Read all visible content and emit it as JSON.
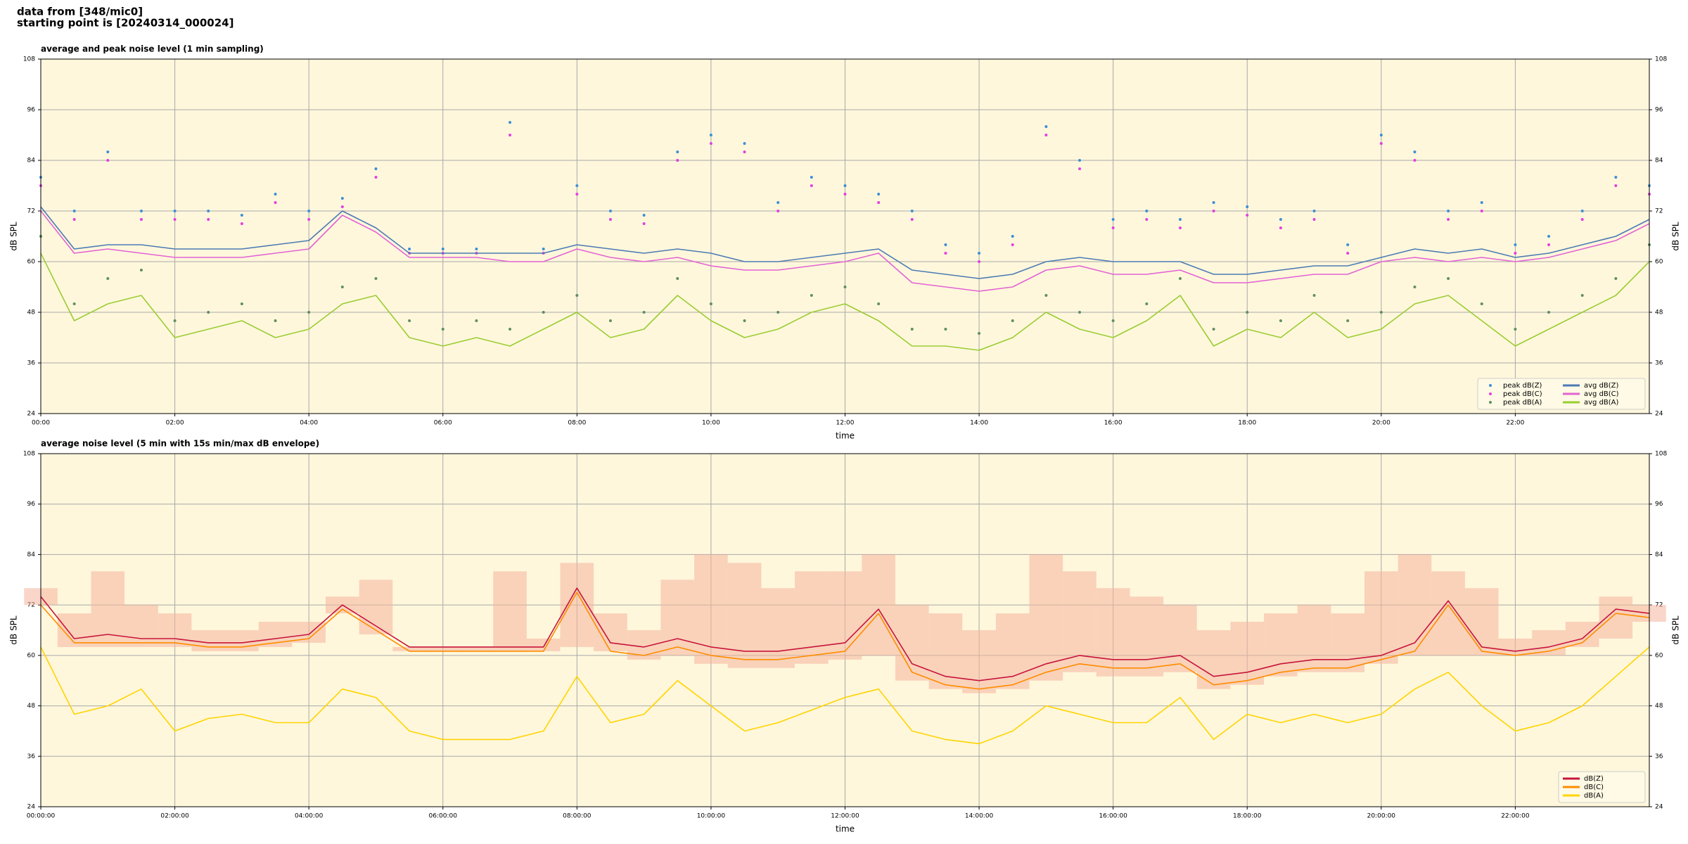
{
  "header": [
    "data from [348/mic0]",
    "starting point is [20240314_000024]"
  ],
  "chart_data": [
    {
      "type": "line",
      "title": "average and peak noise level (1 min sampling)",
      "x_label": "time",
      "y_label": "dB SPL",
      "xlim": [
        0,
        24
      ],
      "ylim": [
        24,
        108
      ],
      "xticks": [
        {
          "value": 0,
          "label": "00:00"
        },
        {
          "value": 2,
          "label": "02:00"
        },
        {
          "value": 4,
          "label": "04:00"
        },
        {
          "value": 6,
          "label": "06:00"
        },
        {
          "value": 8,
          "label": "08:00"
        },
        {
          "value": 10,
          "label": "10:00"
        },
        {
          "value": 12,
          "label": "12:00"
        },
        {
          "value": 14,
          "label": "14:00"
        },
        {
          "value": 16,
          "label": "16:00"
        },
        {
          "value": 18,
          "label": "18:00"
        },
        {
          "value": 20,
          "label": "20:00"
        },
        {
          "value": 22,
          "label": "22:00"
        }
      ],
      "yticks": [
        24,
        36,
        48,
        60,
        72,
        84,
        96,
        108
      ],
      "grid": true,
      "legend": "lower right",
      "legend_columns": 2,
      "x": [
        0,
        0.5,
        1,
        1.5,
        2,
        2.5,
        3,
        3.5,
        4,
        4.5,
        5,
        5.5,
        6,
        6.5,
        7,
        7.5,
        8,
        8.5,
        9,
        9.5,
        10,
        10.5,
        11,
        11.5,
        12,
        12.5,
        13,
        13.5,
        14,
        14.5,
        15,
        15.5,
        16,
        16.5,
        17,
        17.5,
        18,
        18.5,
        19,
        19.5,
        20,
        20.5,
        21,
        21.5,
        22,
        22.5,
        23,
        23.5,
        24
      ],
      "series": [
        {
          "name": "peak dB(Z)",
          "style": "points",
          "color": "#3d8fd6",
          "values": [
            80,
            72,
            86,
            72,
            72,
            72,
            71,
            76,
            72,
            75,
            82,
            63,
            63,
            63,
            93,
            63,
            78,
            72,
            71,
            86,
            90,
            88,
            74,
            80,
            78,
            76,
            72,
            64,
            62,
            66,
            92,
            84,
            70,
            72,
            70,
            74,
            73,
            70,
            72,
            64,
            90,
            86,
            72,
            74,
            64,
            66,
            72,
            80,
            78
          ]
        },
        {
          "name": "peak dB(C)",
          "style": "points",
          "color": "#e33fe0",
          "values": [
            78,
            70,
            84,
            70,
            70,
            70,
            69,
            74,
            70,
            73,
            80,
            62,
            62,
            62,
            90,
            62,
            76,
            70,
            69,
            84,
            88,
            86,
            72,
            78,
            76,
            74,
            70,
            62,
            60,
            64,
            90,
            82,
            68,
            70,
            68,
            72,
            71,
            68,
            70,
            62,
            88,
            84,
            70,
            72,
            62,
            64,
            70,
            78,
            76
          ]
        },
        {
          "name": "peak dB(A)",
          "style": "points",
          "color": "#5f8f62",
          "values": [
            66,
            50,
            56,
            58,
            46,
            48,
            50,
            46,
            48,
            54,
            56,
            46,
            44,
            46,
            44,
            48,
            52,
            46,
            48,
            56,
            50,
            46,
            48,
            52,
            54,
            50,
            44,
            44,
            43,
            46,
            52,
            48,
            46,
            50,
            56,
            44,
            48,
            46,
            52,
            46,
            48,
            54,
            56,
            50,
            44,
            48,
            52,
            56,
            64
          ]
        },
        {
          "name": "avg dB(Z)",
          "style": "line",
          "color": "#4c7bb4",
          "values": [
            73,
            63,
            64,
            64,
            63,
            63,
            63,
            64,
            65,
            72,
            68,
            62,
            62,
            62,
            62,
            62,
            64,
            63,
            62,
            63,
            62,
            60,
            60,
            61,
            62,
            63,
            58,
            57,
            56,
            57,
            60,
            61,
            60,
            60,
            60,
            57,
            57,
            58,
            59,
            59,
            61,
            63,
            62,
            63,
            61,
            62,
            64,
            66,
            70
          ]
        },
        {
          "name": "avg dB(C)",
          "style": "line",
          "color": "#e264d4",
          "values": [
            72,
            62,
            63,
            62,
            61,
            61,
            61,
            62,
            63,
            71,
            67,
            61,
            61,
            61,
            60,
            60,
            63,
            61,
            60,
            61,
            59,
            58,
            58,
            59,
            60,
            62,
            55,
            54,
            53,
            54,
            58,
            59,
            57,
            57,
            58,
            55,
            55,
            56,
            57,
            57,
            60,
            61,
            60,
            61,
            60,
            61,
            63,
            65,
            69
          ]
        },
        {
          "name": "avg dB(A)",
          "style": "line",
          "color": "#9acd32",
          "values": [
            62,
            46,
            50,
            52,
            42,
            44,
            46,
            42,
            44,
            50,
            52,
            42,
            40,
            42,
            40,
            44,
            48,
            42,
            44,
            52,
            46,
            42,
            44,
            48,
            50,
            46,
            40,
            40,
            39,
            42,
            48,
            44,
            42,
            46,
            52,
            40,
            44,
            42,
            48,
            42,
            44,
            50,
            52,
            46,
            40,
            44,
            48,
            52,
            60
          ]
        }
      ]
    },
    {
      "type": "line",
      "title": "average noise level (5 min with 15s min/max dB envelope)",
      "x_label": "time",
      "y_label": "dB SPL",
      "xlim": [
        0,
        24
      ],
      "ylim": [
        24,
        108
      ],
      "xticks": [
        {
          "value": 0,
          "label": "00:00:00"
        },
        {
          "value": 2,
          "label": "02:00:00"
        },
        {
          "value": 4,
          "label": "04:00:00"
        },
        {
          "value": 6,
          "label": "06:00:00"
        },
        {
          "value": 8,
          "label": "08:00:00"
        },
        {
          "value": 10,
          "label": "10:00:00"
        },
        {
          "value": 12,
          "label": "12:00:00"
        },
        {
          "value": 14,
          "label": "14:00:00"
        },
        {
          "value": 16,
          "label": "16:00:00"
        },
        {
          "value": 18,
          "label": "18:00:00"
        },
        {
          "value": 20,
          "label": "20:00:00"
        },
        {
          "value": 22,
          "label": "22:00:00"
        }
      ],
      "yticks": [
        24,
        36,
        48,
        60,
        72,
        84,
        96,
        108
      ],
      "grid": true,
      "legend": "lower right",
      "legend_columns": 1,
      "x": [
        0,
        0.5,
        1,
        1.5,
        2,
        2.5,
        3,
        3.5,
        4,
        4.5,
        5,
        5.5,
        6,
        6.5,
        7,
        7.5,
        8,
        8.5,
        9,
        9.5,
        10,
        10.5,
        11,
        11.5,
        12,
        12.5,
        13,
        13.5,
        14,
        14.5,
        15,
        15.5,
        16,
        16.5,
        17,
        17.5,
        18,
        18.5,
        19,
        19.5,
        20,
        20.5,
        21,
        21.5,
        22,
        22.5,
        23,
        23.5,
        24
      ],
      "envelope": {
        "color": "#f4b49c",
        "upper": [
          76,
          70,
          80,
          72,
          70,
          66,
          66,
          68,
          68,
          74,
          78,
          62,
          62,
          62,
          80,
          64,
          82,
          70,
          66,
          78,
          84,
          82,
          76,
          80,
          80,
          84,
          72,
          70,
          66,
          70,
          84,
          80,
          76,
          74,
          72,
          66,
          68,
          70,
          72,
          70,
          80,
          84,
          80,
          76,
          64,
          66,
          68,
          74,
          72
        ],
        "lower": [
          72,
          62,
          62,
          62,
          62,
          61,
          61,
          62,
          63,
          70,
          65,
          61,
          61,
          61,
          61,
          61,
          62,
          61,
          59,
          60,
          58,
          57,
          57,
          58,
          59,
          60,
          54,
          52,
          51,
          52,
          54,
          56,
          55,
          55,
          56,
          52,
          53,
          55,
          56,
          56,
          58,
          60,
          60,
          60,
          60,
          60,
          62,
          64,
          68
        ]
      },
      "series": [
        {
          "name": "dB(Z)",
          "style": "line",
          "color": "#c8143c",
          "values": [
            74,
            64,
            65,
            64,
            64,
            63,
            63,
            64,
            65,
            72,
            67,
            62,
            62,
            62,
            62,
            62,
            76,
            63,
            62,
            64,
            62,
            61,
            61,
            62,
            63,
            71,
            58,
            55,
            54,
            55,
            58,
            60,
            59,
            59,
            60,
            55,
            56,
            58,
            59,
            59,
            60,
            63,
            73,
            62,
            61,
            62,
            64,
            71,
            70
          ]
        },
        {
          "name": "dB(C)",
          "style": "line",
          "color": "#ff8c00",
          "values": [
            72,
            63,
            63,
            63,
            63,
            62,
            62,
            63,
            64,
            71,
            66,
            61,
            61,
            61,
            61,
            61,
            75,
            61,
            60,
            62,
            60,
            59,
            59,
            60,
            61,
            70,
            56,
            53,
            52,
            53,
            56,
            58,
            57,
            57,
            58,
            53,
            54,
            56,
            57,
            57,
            59,
            61,
            72,
            61,
            60,
            61,
            63,
            70,
            69
          ]
        },
        {
          "name": "dB(A)",
          "style": "line",
          "color": "#ffd400",
          "values": [
            62,
            46,
            48,
            52,
            42,
            45,
            46,
            44,
            44,
            52,
            50,
            42,
            40,
            40,
            40,
            42,
            55,
            44,
            46,
            54,
            48,
            42,
            44,
            47,
            50,
            52,
            42,
            40,
            39,
            42,
            48,
            46,
            44,
            44,
            50,
            40,
            46,
            44,
            46,
            44,
            46,
            52,
            56,
            48,
            42,
            44,
            48,
            55,
            62
          ]
        }
      ]
    }
  ]
}
